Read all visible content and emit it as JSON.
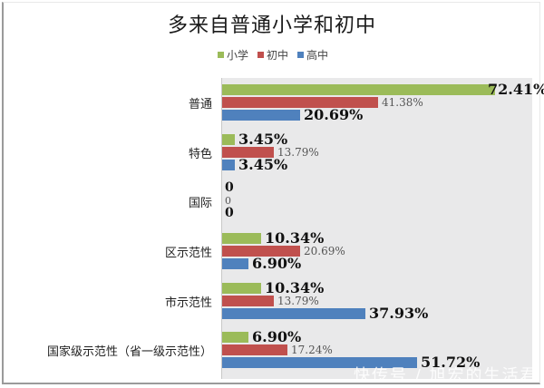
{
  "chart_data": {
    "type": "bar",
    "orientation": "horizontal",
    "title": "多来自普通小学和初中",
    "categories": [
      "普通",
      "特色",
      "国际",
      "区示范性",
      "市示范性",
      "国家级示范性（省一级示范性）"
    ],
    "series": [
      {
        "name": "小学",
        "color": "#9bbb59",
        "values": [
          72.41,
          3.45,
          0,
          10.34,
          10.34,
          6.9
        ],
        "labels": [
          "72.41%",
          "3.45%",
          "0",
          "10.34%",
          "10.34%",
          "6.90%"
        ]
      },
      {
        "name": "初中",
        "color": "#c0504d",
        "values": [
          41.38,
          13.79,
          0,
          20.69,
          13.79,
          17.24
        ],
        "labels": [
          "41.38%",
          "13.79%",
          "0",
          "20.69%",
          "13.79%",
          "17.24%"
        ]
      },
      {
        "name": "高中",
        "color": "#4f81bd",
        "values": [
          20.69,
          3.45,
          0,
          6.9,
          37.93,
          51.72
        ],
        "labels": [
          "20.69%",
          "3.45%",
          "0",
          "6.90%",
          "37.93%",
          "51.72%"
        ]
      }
    ],
    "xlabel": "",
    "ylabel": "",
    "xlim": [
      0,
      80
    ],
    "grid": false,
    "legend_position": "top",
    "units": "%"
  },
  "legend": [
    {
      "label": "小学",
      "color": "#9bbb59"
    },
    {
      "label": "初中",
      "color": "#c0504d"
    },
    {
      "label": "高中",
      "color": "#4f81bd"
    }
  ],
  "watermark": "快传号 / 旭宏的生活君"
}
